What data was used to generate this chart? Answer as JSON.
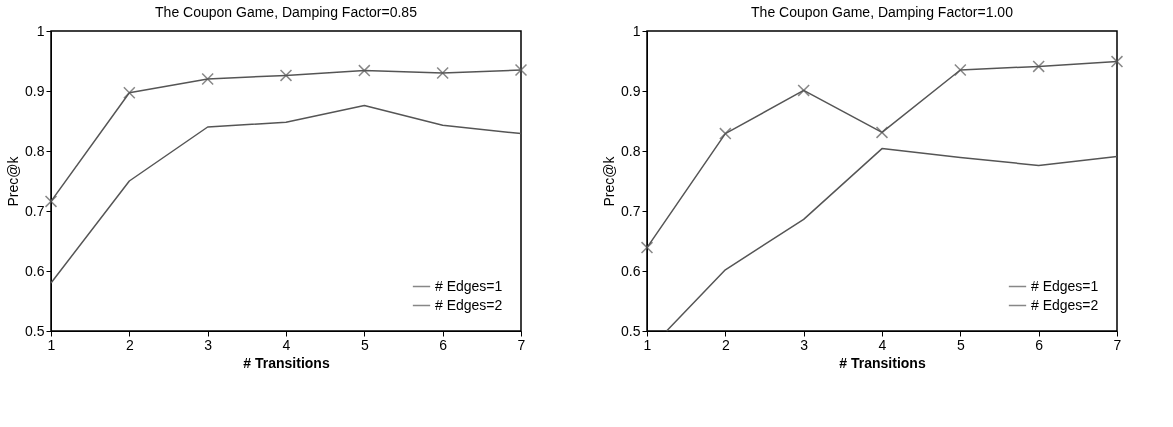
{
  "chart_data": [
    {
      "type": "line",
      "title": "The Coupon Game, Damping Factor=0.85",
      "xlabel": "# Transitions",
      "ylabel": "Prec@k",
      "x": [
        1,
        2,
        3,
        4,
        5,
        6,
        7
      ],
      "xlim": [
        1,
        7
      ],
      "xticks": [
        1,
        2,
        3,
        4,
        5,
        6,
        7
      ],
      "ylim": [
        0.5,
        1
      ],
      "yticks": [
        0.5,
        0.6,
        0.7,
        0.8,
        0.9,
        1
      ],
      "grid": false,
      "legend": "bottom right",
      "line_style": "solid",
      "series": [
        {
          "name": "# Edges=1",
          "color": "#555555",
          "marker": "none",
          "values": [
            0.58,
            0.75,
            0.84,
            0.848,
            0.876,
            0.843,
            0.829
          ]
        },
        {
          "name": "# Edges=2",
          "color": "#555555",
          "marker": "cross",
          "values": [
            0.716,
            0.897,
            0.92,
            0.926,
            0.934,
            0.93,
            0.935
          ]
        }
      ]
    },
    {
      "type": "line",
      "title": "The Coupon Game, Damping Factor=1.00",
      "xlabel": "# Transitions",
      "ylabel": "Prec@k",
      "x": [
        1,
        2,
        3,
        4,
        5,
        6,
        7
      ],
      "xlim": [
        1,
        7
      ],
      "xticks": [
        1,
        2,
        3,
        4,
        5,
        6,
        7
      ],
      "ylim": [
        0.5,
        1
      ],
      "yticks": [
        0.5,
        0.6,
        0.7,
        0.8,
        0.9,
        1
      ],
      "grid": false,
      "legend": "bottom right",
      "line_style": "solid",
      "series": [
        {
          "name": "# Edges=1",
          "color": "#555555",
          "marker": "none",
          "x": [
            1.25,
            2,
            3,
            4,
            5,
            6,
            7
          ],
          "values": [
            0.5,
            0.602,
            0.686,
            0.804,
            0.789,
            0.776,
            0.791
          ]
        },
        {
          "name": "# Edges=2",
          "color": "#555555",
          "marker": "cross",
          "values": [
            0.639,
            0.829,
            0.901,
            0.831,
            0.935,
            0.941,
            0.949
          ]
        }
      ]
    }
  ]
}
